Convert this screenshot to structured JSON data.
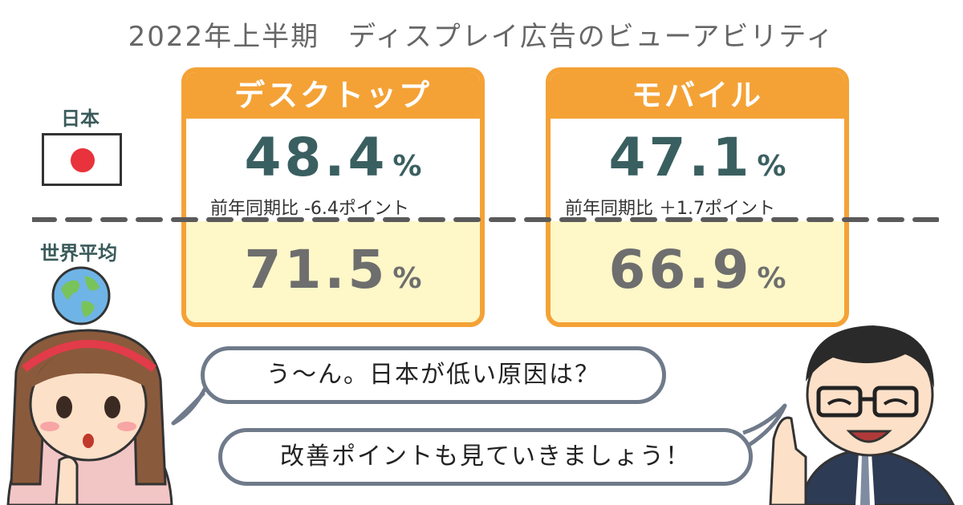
{
  "title": "2022年上半期　ディスプレイ広告のビューアビリティ",
  "regions": {
    "japan": "日本",
    "world": "世界平均"
  },
  "cards": [
    {
      "name": "デスクトップ",
      "japan_value": "48.4",
      "world_value": "71.5",
      "unit": "%",
      "change": "前年同期比 -6.4ポイント"
    },
    {
      "name": "モバイル",
      "japan_value": "47.1",
      "world_value": "66.9",
      "unit": "%",
      "change": "前年同期比 ＋1.7ポイント"
    }
  ],
  "dialogue": {
    "woman": "う～ん。日本が低い原因は？",
    "man": "改善ポイントも見ていきましょう！"
  },
  "colors": {
    "accent_orange": "#f4a236",
    "world_bg": "#fef7c8",
    "japan_text": "#3a5f60",
    "world_text": "#6e6e6e",
    "flag_red": "#e8323c"
  }
}
